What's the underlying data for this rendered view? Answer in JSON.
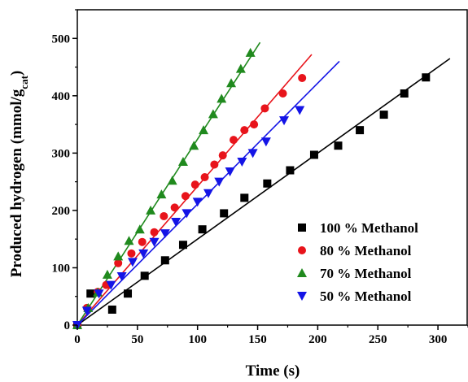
{
  "chart_data": {
    "type": "scatter",
    "title": "",
    "xlabel": "Time (s)",
    "ylabel_main": "Produced hydrogen (mmol/g",
    "ylabel_sub": "cat",
    "ylabel_close": ")",
    "xlim": [
      0,
      325
    ],
    "ylim": [
      0,
      550
    ],
    "xticks": [
      0,
      50,
      100,
      150,
      200,
      250,
      300
    ],
    "yticks": [
      0,
      100,
      200,
      300,
      400,
      500
    ],
    "grid": false,
    "legend_position": "bottom-right",
    "series": [
      {
        "name": "100 % Methanol",
        "marker": "square",
        "color": "#000000",
        "points": [
          [
            0,
            0
          ],
          [
            11,
            55
          ],
          [
            29,
            27
          ],
          [
            42,
            55
          ],
          [
            56,
            86
          ],
          [
            73,
            113
          ],
          [
            88,
            140
          ],
          [
            104,
            167
          ],
          [
            122,
            195
          ],
          [
            139,
            222
          ],
          [
            158,
            247
          ],
          [
            177,
            270
          ],
          [
            197,
            297
          ],
          [
            217,
            313
          ],
          [
            235,
            340
          ],
          [
            255,
            367
          ],
          [
            272,
            404
          ],
          [
            290,
            432
          ]
        ],
        "fit": [
          [
            0,
            0
          ],
          [
            310,
            465
          ]
        ]
      },
      {
        "name": "80 % Methanol",
        "marker": "circle",
        "color": "#e8141b",
        "points": [
          [
            0,
            0
          ],
          [
            8,
            30
          ],
          [
            17,
            58
          ],
          [
            24,
            70
          ],
          [
            34,
            108
          ],
          [
            45,
            125
          ],
          [
            54,
            145
          ],
          [
            64,
            162
          ],
          [
            72,
            190
          ],
          [
            81,
            205
          ],
          [
            90,
            225
          ],
          [
            98,
            245
          ],
          [
            106,
            258
          ],
          [
            114,
            280
          ],
          [
            121,
            296
          ],
          [
            130,
            323
          ],
          [
            139,
            340
          ],
          [
            147,
            350
          ],
          [
            156,
            378
          ],
          [
            171,
            404
          ],
          [
            187,
            431
          ]
        ],
        "fit": [
          [
            0,
            0
          ],
          [
            195,
            472
          ]
        ]
      },
      {
        "name": "70 % Methanol",
        "marker": "triangle-up",
        "color": "#208a1e",
        "points": [
          [
            0,
            0
          ],
          [
            9,
            30
          ],
          [
            17,
            57
          ],
          [
            25,
            88
          ],
          [
            34,
            120
          ],
          [
            43,
            147
          ],
          [
            52,
            167
          ],
          [
            61,
            200
          ],
          [
            70,
            228
          ],
          [
            79,
            252
          ],
          [
            88,
            285
          ],
          [
            97,
            313
          ],
          [
            105,
            340
          ],
          [
            113,
            368
          ],
          [
            120,
            395
          ],
          [
            128,
            422
          ],
          [
            136,
            447
          ],
          [
            144,
            475
          ]
        ],
        "fit": [
          [
            0,
            0
          ],
          [
            152,
            493
          ]
        ]
      },
      {
        "name": "50 % Methanol",
        "marker": "triangle-down",
        "color": "#1414e6",
        "points": [
          [
            0,
            0
          ],
          [
            8,
            25
          ],
          [
            18,
            55
          ],
          [
            28,
            70
          ],
          [
            37,
            85
          ],
          [
            46,
            110
          ],
          [
            55,
            125
          ],
          [
            64,
            145
          ],
          [
            73,
            160
          ],
          [
            82,
            180
          ],
          [
            91,
            195
          ],
          [
            100,
            215
          ],
          [
            109,
            230
          ],
          [
            118,
            250
          ],
          [
            127,
            268
          ],
          [
            137,
            285
          ],
          [
            146,
            300
          ],
          [
            157,
            320
          ],
          [
            172,
            357
          ],
          [
            185,
            375
          ]
        ],
        "fit": [
          [
            0,
            0
          ],
          [
            218,
            460
          ]
        ]
      }
    ]
  }
}
